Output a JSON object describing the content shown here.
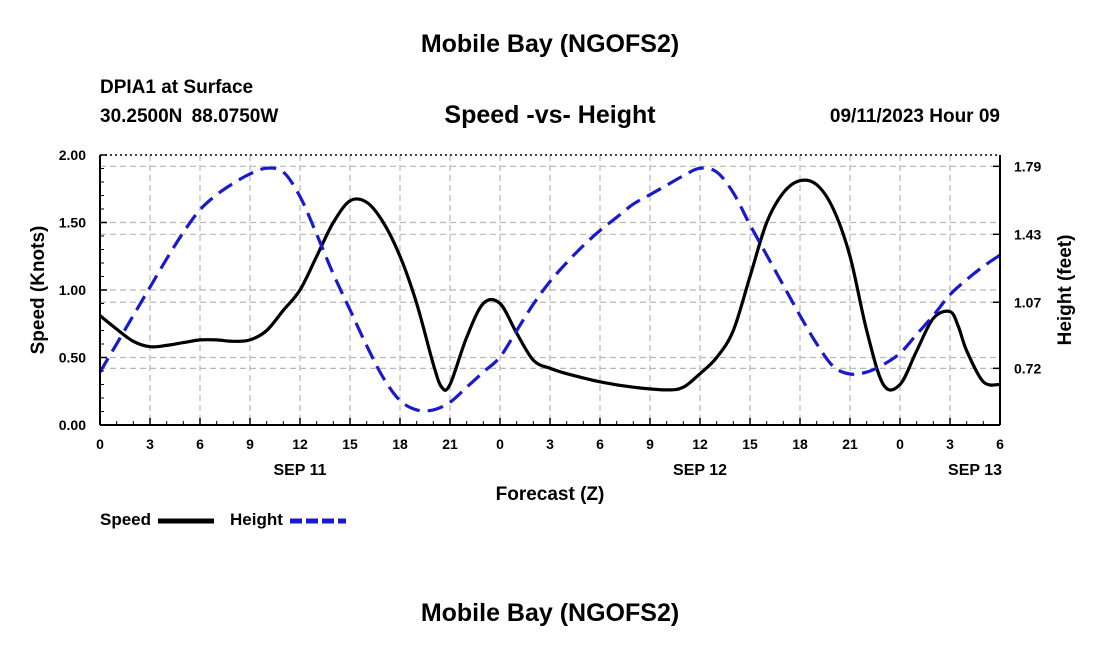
{
  "page": {
    "top_title": "Mobile Bay (NGOFS2)",
    "bottom_title": "Mobile Bay (NGOFS2)",
    "station_name": "DPIA1 at Surface",
    "station_coords": "30.2500N 88.0750W",
    "chart_title": "Speed -vs- Height",
    "chart_datetime": "09/11/2023 Hour 09"
  },
  "chart_data": {
    "type": "line",
    "title": "Speed -vs- Height",
    "xlabel": "Forecast (Z)",
    "ylabel_left": "Speed (Knots)",
    "ylabel_right": "Height (feet)",
    "x_unit": "forecast hours from 2023-09-11 00Z",
    "x_range": [
      0,
      54
    ],
    "x_ticks": [
      0,
      3,
      6,
      9,
      12,
      15,
      18,
      21,
      24,
      27,
      30,
      33,
      36,
      39,
      42,
      45,
      48,
      51,
      54
    ],
    "x_tick_labels": [
      "0",
      "3",
      "6",
      "9",
      "12",
      "15",
      "18",
      "21",
      "0",
      "3",
      "6",
      "9",
      "12",
      "15",
      "18",
      "21",
      "0",
      "3",
      "6"
    ],
    "date_labels": [
      {
        "label": "SEP 11",
        "x": 12
      },
      {
        "label": "SEP 12",
        "x": 36
      },
      {
        "label": "SEP 13",
        "x": 52.5
      }
    ],
    "ylim_left": [
      0,
      2
    ],
    "left_ticks": [
      0,
      0.5,
      1,
      1.5,
      2
    ],
    "left_tick_labels": [
      "0.00",
      "0.50",
      "1.00",
      "1.50",
      "2.00"
    ],
    "ylim_right": [
      0.42,
      1.85
    ],
    "right_ticks": [
      0.72,
      1.07,
      1.43,
      1.79
    ],
    "right_tick_labels": [
      "0.72",
      "1.07",
      "1.43",
      "1.79"
    ],
    "grid": true,
    "legend_position": "bottom-left",
    "series": [
      {
        "name": "Speed",
        "axis": "left",
        "color": "#000000",
        "style": "solid",
        "x": [
          0,
          1,
          2,
          3,
          4,
          5,
          6,
          7,
          8,
          9,
          10,
          11,
          12,
          13,
          14,
          15,
          16,
          17,
          18,
          19,
          20,
          20.5,
          21,
          22,
          23,
          24,
          25,
          26,
          27,
          28,
          30,
          32,
          34,
          35,
          36,
          37,
          38,
          39,
          40,
          41,
          42,
          43,
          44,
          45,
          46,
          47,
          48,
          49,
          50,
          51,
          51.5,
          52,
          53,
          54
        ],
        "y": [
          0.81,
          0.71,
          0.62,
          0.58,
          0.59,
          0.61,
          0.63,
          0.63,
          0.62,
          0.63,
          0.7,
          0.85,
          1.0,
          1.25,
          1.5,
          1.66,
          1.65,
          1.5,
          1.25,
          0.9,
          0.45,
          0.28,
          0.3,
          0.65,
          0.9,
          0.9,
          0.68,
          0.48,
          0.42,
          0.38,
          0.32,
          0.28,
          0.26,
          0.28,
          0.38,
          0.5,
          0.7,
          1.1,
          1.5,
          1.72,
          1.81,
          1.78,
          1.6,
          1.25,
          0.7,
          0.3,
          0.3,
          0.55,
          0.79,
          0.84,
          0.73,
          0.55,
          0.32,
          0.3
        ]
      },
      {
        "name": "Height",
        "axis": "right",
        "color": "#1a1acd",
        "style": "dashed",
        "x": [
          0,
          1,
          2,
          3,
          4,
          5,
          6,
          7,
          8,
          9,
          10,
          11,
          12,
          13,
          14,
          15,
          16,
          17,
          18,
          19,
          20,
          21,
          22,
          23,
          24,
          25,
          26,
          27,
          28,
          29,
          30,
          31,
          32,
          33,
          34,
          35,
          36,
          37,
          38,
          39,
          40,
          41,
          42,
          43,
          44,
          45,
          46,
          47,
          48,
          49,
          50,
          51,
          52,
          53,
          54
        ],
        "y": [
          0.7,
          0.85,
          1.0,
          1.15,
          1.3,
          1.44,
          1.56,
          1.64,
          1.7,
          1.75,
          1.78,
          1.76,
          1.63,
          1.43,
          1.22,
          1.03,
          0.84,
          0.67,
          0.55,
          0.5,
          0.5,
          0.54,
          0.62,
          0.7,
          0.78,
          0.92,
          1.06,
          1.18,
          1.28,
          1.37,
          1.45,
          1.52,
          1.59,
          1.64,
          1.69,
          1.74,
          1.78,
          1.76,
          1.65,
          1.48,
          1.32,
          1.16,
          1.0,
          0.85,
          0.73,
          0.69,
          0.7,
          0.74,
          0.8,
          0.9,
          1.0,
          1.11,
          1.19,
          1.26,
          1.32
        ]
      }
    ]
  }
}
